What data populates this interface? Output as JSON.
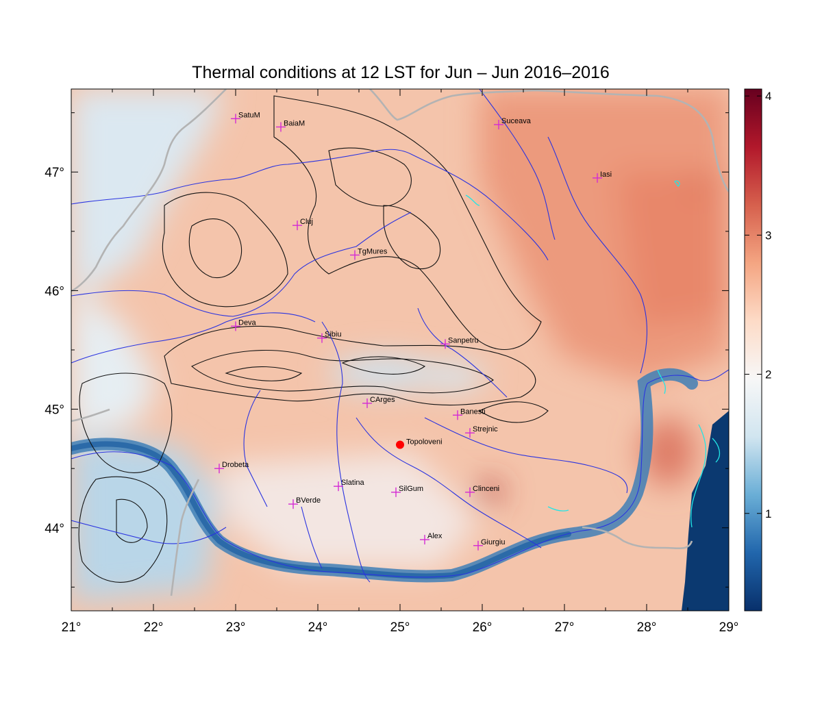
{
  "title": "Thermal conditions at 12 LST for Jun – Jun  2016–2016",
  "lon_range": [
    21,
    29
  ],
  "lat_range": [
    43.3,
    47.7
  ],
  "lon_ticks": [
    "21°",
    "22°",
    "23°",
    "24°",
    "25°",
    "26°",
    "27°",
    "28°",
    "29°"
  ],
  "lat_ticks": [
    {
      "value": 44,
      "label": "44°"
    },
    {
      "value": 45,
      "label": "45°"
    },
    {
      "value": 46,
      "label": "46°"
    },
    {
      "value": 47,
      "label": "47°"
    }
  ],
  "colorbar": {
    "range": [
      0.3,
      4.05
    ],
    "ticks": [
      {
        "value": 1,
        "label": "1"
      },
      {
        "value": 2,
        "label": "2"
      },
      {
        "value": 3,
        "label": "3"
      },
      {
        "value": 4,
        "label": "4"
      }
    ],
    "colors": [
      "#08306b",
      "#2166ac",
      "#6aaed6",
      "#d1e5f0",
      "#f7f7f7",
      "#fddbc7",
      "#f4a582",
      "#d6604d",
      "#b2182b",
      "#67001f"
    ]
  },
  "stations": [
    {
      "name": "SatuM",
      "lon": 23.0,
      "lat": 47.45
    },
    {
      "name": "BaiaM",
      "lon": 23.55,
      "lat": 47.38
    },
    {
      "name": "Suceava",
      "lon": 26.2,
      "lat": 47.4
    },
    {
      "name": "Iasi",
      "lon": 27.4,
      "lat": 46.95
    },
    {
      "name": "Cluj",
      "lon": 23.75,
      "lat": 46.55
    },
    {
      "name": "TgMures",
      "lon": 24.45,
      "lat": 46.3
    },
    {
      "name": "Deva",
      "lon": 23.0,
      "lat": 45.7
    },
    {
      "name": "Sibiu",
      "lon": 24.05,
      "lat": 45.6
    },
    {
      "name": "Sanpetru",
      "lon": 25.55,
      "lat": 45.55
    },
    {
      "name": "CArges",
      "lon": 24.6,
      "lat": 45.05
    },
    {
      "name": "Banesti",
      "lon": 25.7,
      "lat": 44.95
    },
    {
      "name": "Strejnic",
      "lon": 25.85,
      "lat": 44.8
    },
    {
      "name": "Drobeta",
      "lon": 22.8,
      "lat": 44.5
    },
    {
      "name": "Slatina",
      "lon": 24.25,
      "lat": 44.35
    },
    {
      "name": "SilGum",
      "lon": 24.95,
      "lat": 44.3
    },
    {
      "name": "Clinceni",
      "lon": 25.85,
      "lat": 44.3
    },
    {
      "name": "BVerde",
      "lon": 23.7,
      "lat": 44.2
    },
    {
      "name": "Alex",
      "lon": 25.3,
      "lat": 43.9
    },
    {
      "name": "Giurgiu",
      "lon": 25.95,
      "lat": 43.85
    }
  ],
  "highlight_station": {
    "name": "Topoloveni",
    "lon": 25.0,
    "lat": 44.7
  }
}
